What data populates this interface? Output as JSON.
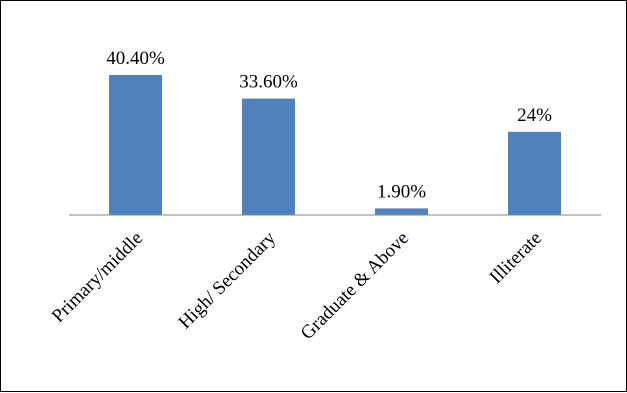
{
  "chart_data": {
    "type": "bar",
    "categories": [
      "Primary/middle",
      "High/ Secondary",
      "Graduate & Above",
      "Illiterate"
    ],
    "values": [
      40.4,
      33.6,
      1.9,
      24
    ],
    "data_labels": [
      "40.40%",
      "33.60%",
      "1.90%",
      "24%"
    ],
    "title": "",
    "xlabel": "",
    "ylabel": "",
    "ylim": [
      0,
      45
    ],
    "grid": false,
    "legend": "none",
    "bar_color": "#4F81BD",
    "axis_color": "#868686"
  }
}
